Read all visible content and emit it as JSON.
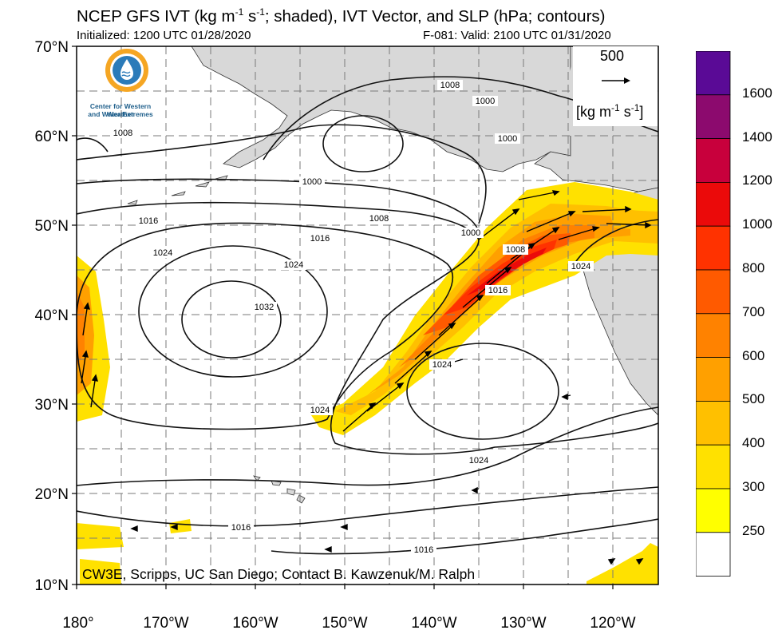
{
  "header": {
    "title_html": "NCEP GFS IVT (kg m<sup style=\"font-size:12px\">-1</sup> s<sup style=\"font-size:12px\">-1</sup>; shaded), IVT Vector, and SLP (hPa; contours)",
    "initialized": "Initialized: 1200 UTC 01/28/2020",
    "valid": "F-081: Valid: 2100 UTC 01/31/2020"
  },
  "logo": {
    "name": "cw3e-logo",
    "line1": "Center for Western Weather",
    "line2": "and Water Extremes"
  },
  "credit": "CW3E, Scripps, UC San Diego; Contact B. Kawzenuk/M. Ralph",
  "vector_reference": {
    "value": "500",
    "unit_html": "[kg m<sup style=\"font-size:12px\">-1</sup> s<sup style=\"font-size:12px\">-1</sup>]"
  },
  "latitude_labels": [
    "70°N",
    "60°N",
    "50°N",
    "40°N",
    "30°N",
    "20°N",
    "10°N"
  ],
  "longitude_labels": [
    "180°",
    "170°W",
    "160°W",
    "150°W",
    "140°W",
    "130°W",
    "120°W"
  ],
  "slp_contour_labels": [
    {
      "text": "1008"
    },
    {
      "text": "1000"
    },
    {
      "text": "1000"
    },
    {
      "text": "1008"
    },
    {
      "text": "1000"
    },
    {
      "text": "1008"
    },
    {
      "text": "1016"
    },
    {
      "text": "1016"
    },
    {
      "text": "1000"
    },
    {
      "text": "1024"
    },
    {
      "text": "1024"
    },
    {
      "text": "1008"
    },
    {
      "text": "1032"
    },
    {
      "text": "1016"
    },
    {
      "text": "1024"
    },
    {
      "text": "1024"
    },
    {
      "text": "1024"
    },
    {
      "text": "1024"
    },
    {
      "text": "1016"
    },
    {
      "text": "1016"
    }
  ],
  "colorbar": {
    "levels": [
      {
        "label": "1600",
        "color": "#5a0a96"
      },
      {
        "label": "1400",
        "color": "#8c0a6e"
      },
      {
        "label": "1200",
        "color": "#c8003c"
      },
      {
        "label": "1000",
        "color": "#eb0a0a"
      },
      {
        "label": "800",
        "color": "#ff3200"
      },
      {
        "label": "700",
        "color": "#ff5a00"
      },
      {
        "label": "600",
        "color": "#ff8200"
      },
      {
        "label": "500",
        "color": "#ffa000"
      },
      {
        "label": "400",
        "color": "#ffc000"
      },
      {
        "label": "300",
        "color": "#ffe100"
      },
      {
        "label": "250",
        "color": "#ffff00"
      },
      {
        "label": "",
        "color": "#ffffff"
      }
    ]
  }
}
